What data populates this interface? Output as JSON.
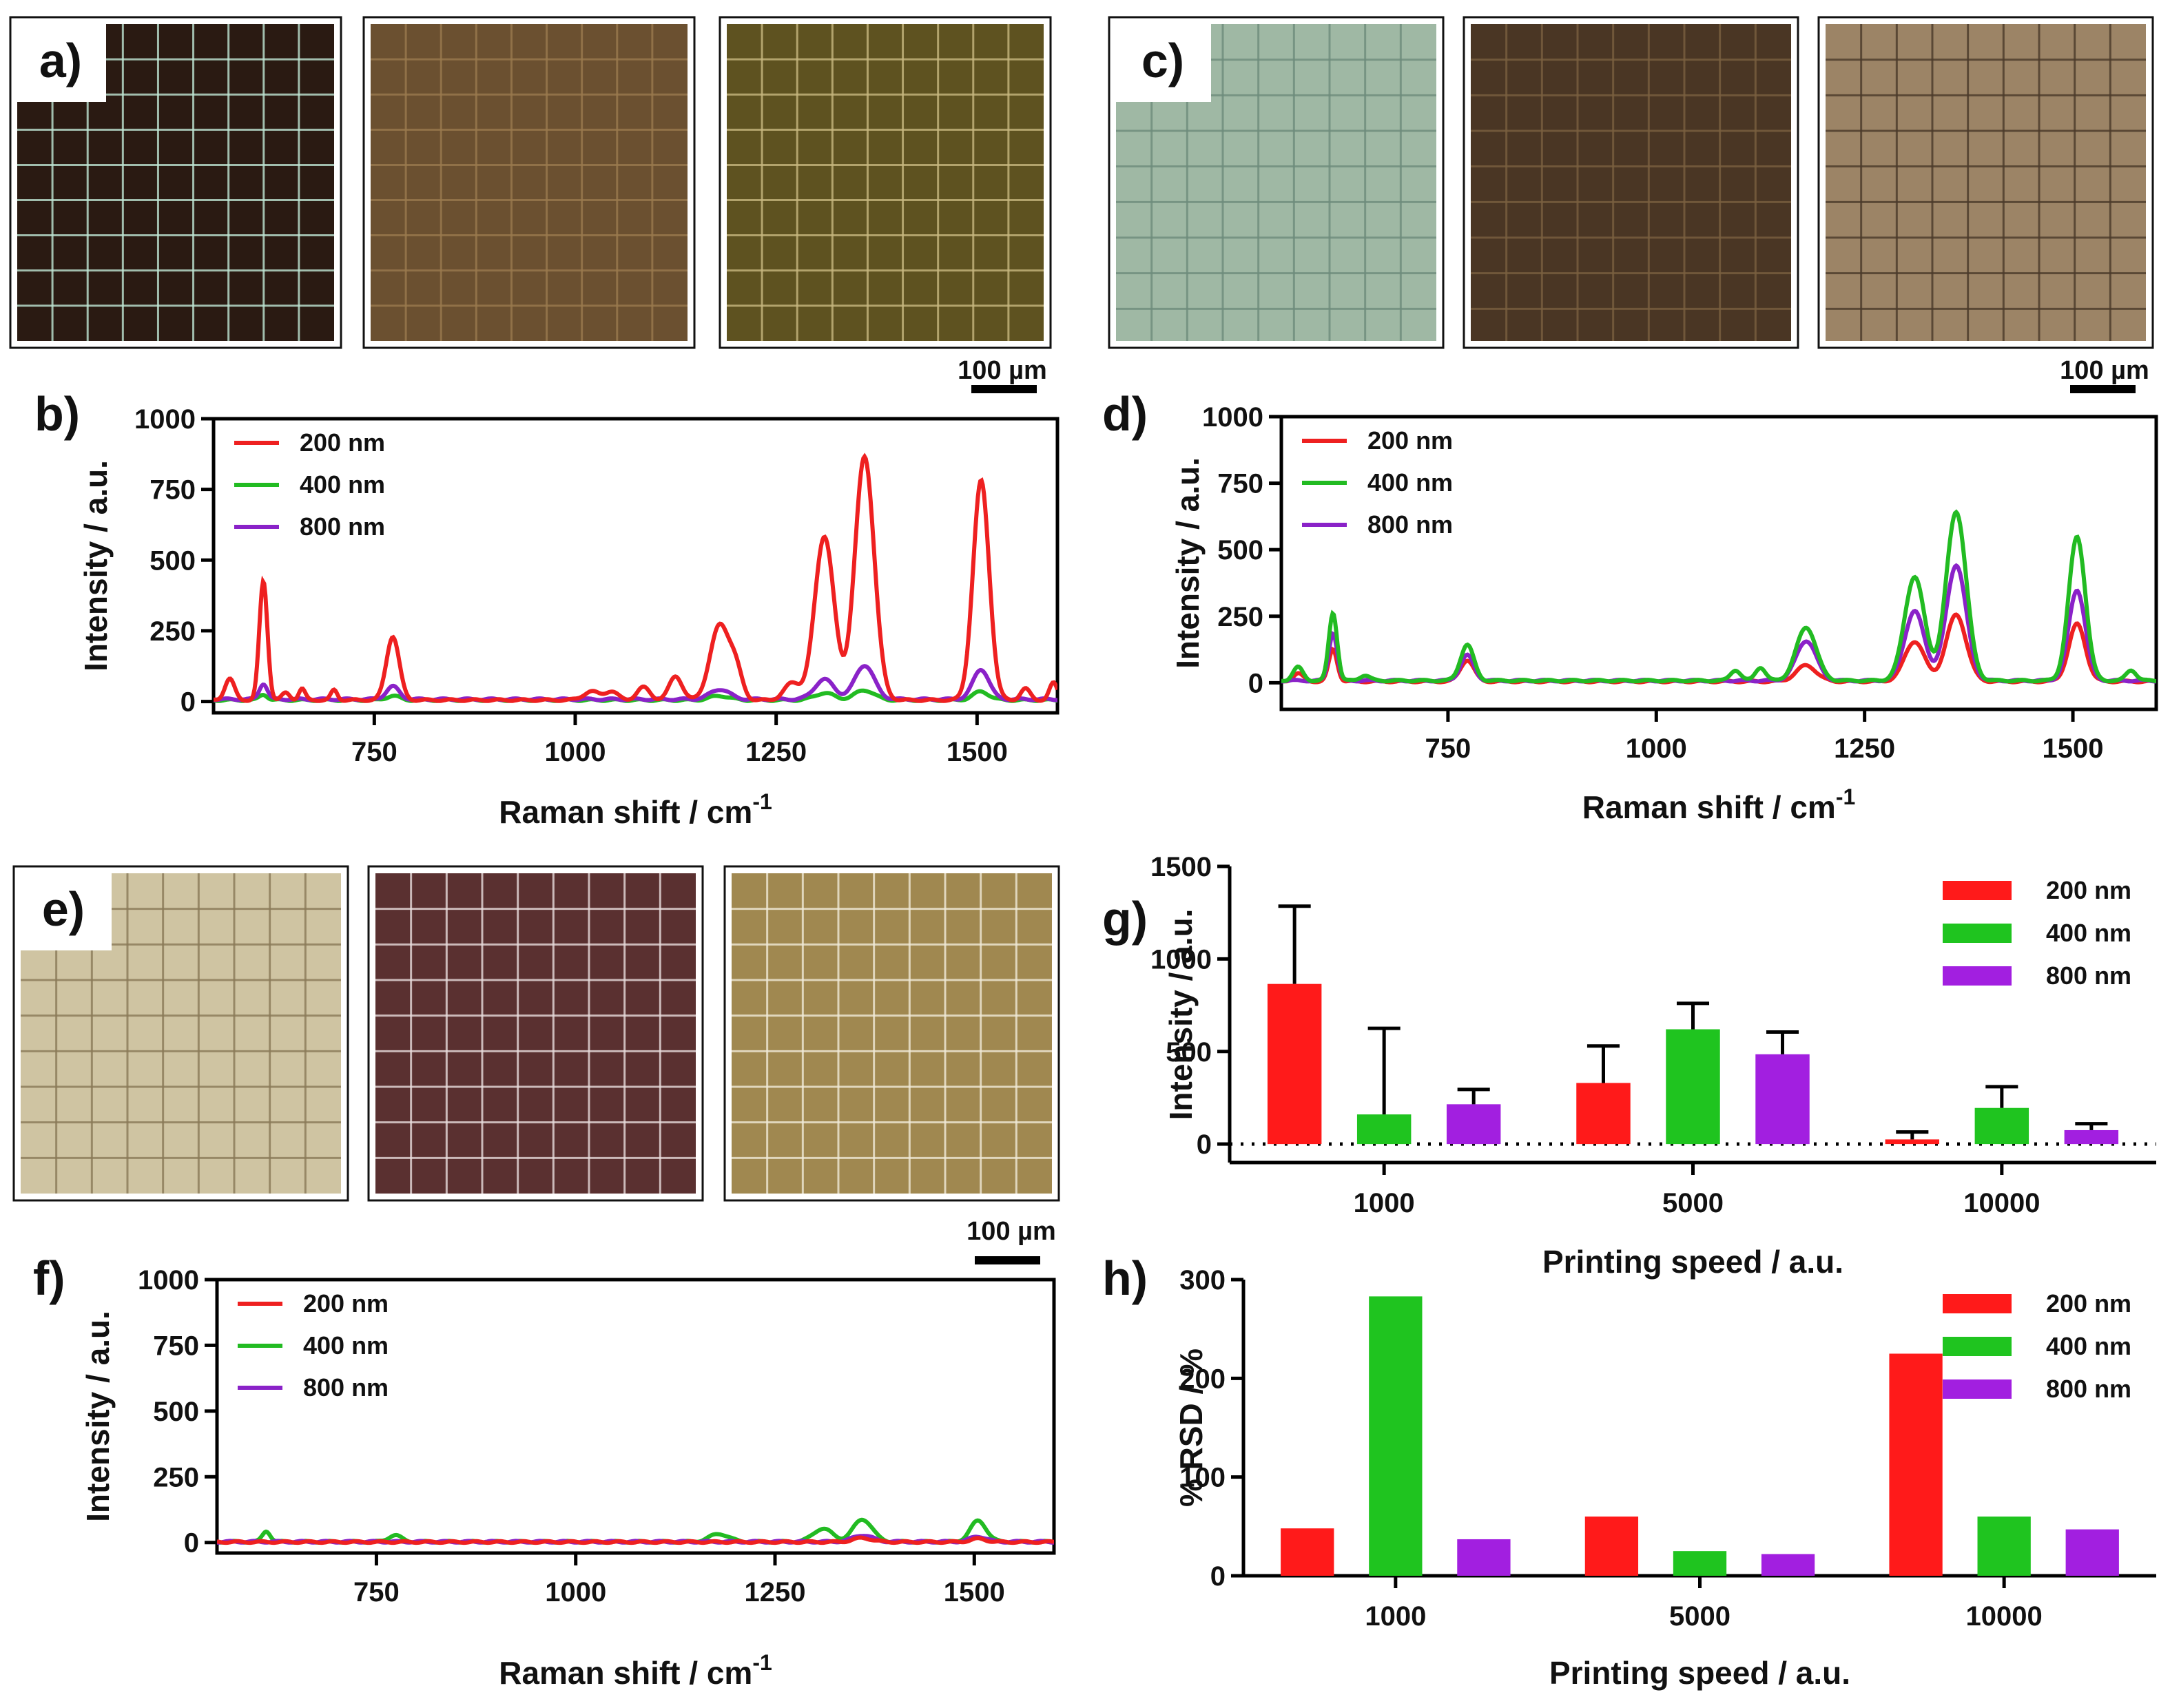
{
  "figure": {
    "micrograph_groups": [
      {
        "label": "a)",
        "tones": [
          {
            "bg": "#2a1a12",
            "grid": "#bfe6d4"
          },
          {
            "bg": "#6b5030",
            "grid": "#9a7a4e"
          },
          {
            "bg": "#5e5220",
            "grid": "#c8b880"
          }
        ],
        "scale_bar": "100 µm"
      },
      {
        "label": "c)",
        "tones": [
          {
            "bg": "#9fb8a4",
            "grid": "#6e8c7c"
          },
          {
            "bg": "#4a3624",
            "grid": "#7a6040"
          },
          {
            "bg": "#9c8466",
            "grid": "#4a3a2a"
          }
        ],
        "scale_bar": "100 µm"
      },
      {
        "label": "e)",
        "tones": [
          {
            "bg": "#cfc4a2",
            "grid": "#8a7a58"
          },
          {
            "bg": "#5a3030",
            "grid": "#e8dcdc"
          },
          {
            "bg": "#a08850",
            "grid": "#f0ead8"
          }
        ],
        "scale_bar": "100 µm"
      }
    ]
  },
  "chart_data": [
    {
      "panel": "b)",
      "type": "line",
      "xlabel": "Raman shift / cm",
      "xlabel_sup": "-1",
      "ylabel": "Intensity / a.u.",
      "xlim": [
        550,
        1600
      ],
      "ylim": [
        -40,
        1000
      ],
      "xticks": [
        750,
        1000,
        1250,
        1500
      ],
      "yticks": [
        0,
        250,
        500,
        750,
        1000
      ],
      "series": [
        {
          "name": "200 nm",
          "color": "#ee2020",
          "baseline": 5,
          "peaks": [
            [
              570,
              75,
              6
            ],
            [
              612,
              420,
              5
            ],
            [
              640,
              25,
              5
            ],
            [
              660,
              40,
              4
            ],
            [
              700,
              35,
              4
            ],
            [
              773,
              225,
              8
            ],
            [
              1020,
              30,
              10
            ],
            [
              1045,
              30,
              8
            ],
            [
              1085,
              45,
              8
            ],
            [
              1125,
              85,
              8
            ],
            [
              1180,
              265,
              12
            ],
            [
              1200,
              90,
              8
            ],
            [
              1270,
              60,
              10
            ],
            [
              1310,
              580,
              12
            ],
            [
              1360,
              860,
              12
            ],
            [
              1505,
              775,
              10
            ],
            [
              1560,
              40,
              6
            ],
            [
              1595,
              60,
              5
            ]
          ]
        },
        {
          "name": "400 nm",
          "color": "#22bb22",
          "baseline": 5,
          "peaks": [
            [
              612,
              20,
              5
            ],
            [
              773,
              15,
              8
            ],
            [
              1180,
              15,
              12
            ],
            [
              1310,
              25,
              12
            ],
            [
              1360,
              35,
              12
            ],
            [
              1505,
              30,
              10
            ]
          ]
        },
        {
          "name": "800 nm",
          "color": "#8a22c8",
          "baseline": 8,
          "peaks": [
            [
              612,
              55,
              5
            ],
            [
              773,
              45,
              8
            ],
            [
              1180,
              35,
              12
            ],
            [
              1310,
              70,
              12
            ],
            [
              1360,
              120,
              12
            ],
            [
              1505,
              105,
              10
            ]
          ]
        }
      ]
    },
    {
      "panel": "d)",
      "type": "line",
      "xlabel": "Raman shift / cm",
      "xlabel_sup": "-1",
      "ylabel": "Intensity / a.u.",
      "xlim": [
        550,
        1600
      ],
      "ylim": [
        -100,
        1000
      ],
      "xticks": [
        750,
        1000,
        1250,
        1500
      ],
      "yticks": [
        0,
        250,
        500,
        750,
        1000
      ],
      "series": [
        {
          "name": "200 nm",
          "color": "#ee2020",
          "baseline": 5,
          "peaks": [
            [
              570,
              30,
              6
            ],
            [
              612,
              120,
              5
            ],
            [
              773,
              80,
              8
            ],
            [
              1180,
              60,
              12
            ],
            [
              1310,
              150,
              12
            ],
            [
              1360,
              250,
              12
            ],
            [
              1505,
              215,
              10
            ]
          ]
        },
        {
          "name": "400 nm",
          "color": "#22bb22",
          "baseline": 8,
          "peaks": [
            [
              570,
              50,
              6
            ],
            [
              612,
              255,
              5
            ],
            [
              650,
              20,
              6
            ],
            [
              773,
              135,
              8
            ],
            [
              1095,
              40,
              6
            ],
            [
              1125,
              50,
              6
            ],
            [
              1180,
              200,
              12
            ],
            [
              1310,
              390,
              12
            ],
            [
              1360,
              635,
              12
            ],
            [
              1505,
              540,
              10
            ],
            [
              1570,
              40,
              6
            ]
          ]
        },
        {
          "name": "800 nm",
          "color": "#8a22c8",
          "baseline": 8,
          "peaks": [
            [
              612,
              180,
              5
            ],
            [
              773,
              95,
              8
            ],
            [
              1180,
              150,
              12
            ],
            [
              1310,
              260,
              12
            ],
            [
              1360,
              435,
              12
            ],
            [
              1505,
              340,
              10
            ]
          ]
        }
      ]
    },
    {
      "panel": "f)",
      "type": "line",
      "xlabel": "Raman shift / cm",
      "xlabel_sup": "-1",
      "ylabel": "Intensity / a.u.",
      "xlim": [
        550,
        1600
      ],
      "ylim": [
        -40,
        1000
      ],
      "xticks": [
        750,
        1000,
        1250,
        1500
      ],
      "yticks": [
        0,
        250,
        500,
        750,
        1000
      ],
      "series": [
        {
          "name": "200 nm",
          "color": "#ee2020",
          "baseline": 2,
          "peaks": [
            [
              1360,
              15,
              12
            ],
            [
              1505,
              12,
              10
            ]
          ]
        },
        {
          "name": "400 nm",
          "color": "#22bb22",
          "baseline": 3,
          "peaks": [
            [
              612,
              40,
              5
            ],
            [
              773,
              25,
              8
            ],
            [
              1180,
              30,
              12
            ],
            [
              1310,
              50,
              12
            ],
            [
              1360,
              85,
              12
            ],
            [
              1505,
              80,
              10
            ]
          ]
        },
        {
          "name": "800 nm",
          "color": "#8a22c8",
          "baseline": 3,
          "peaks": [
            [
              1360,
              25,
              12
            ],
            [
              1505,
              20,
              10
            ]
          ]
        }
      ]
    },
    {
      "panel": "g)",
      "type": "bar",
      "xlabel": "Printing speed / a.u.",
      "ylabel": "Intensity / a.u.",
      "categories": [
        "1000",
        "5000",
        "10000"
      ],
      "ylim": [
        -100,
        1500
      ],
      "yticks": [
        0,
        500,
        1000,
        1500
      ],
      "zero_line": "dotted",
      "series": [
        {
          "name": "200 nm",
          "color": "#ff1a1a",
          "values": [
            865,
            330,
            25
          ],
          "errors": [
            420,
            200,
            40
          ]
        },
        {
          "name": "400 nm",
          "color": "#1fc41f",
          "values": [
            160,
            620,
            195
          ],
          "errors": [
            465,
            140,
            115
          ]
        },
        {
          "name": "800 nm",
          "color": "#a21fe0",
          "values": [
            215,
            485,
            75
          ],
          "errors": [
            80,
            120,
            35
          ]
        }
      ]
    },
    {
      "panel": "h)",
      "type": "bar",
      "xlabel": "Printing speed / a.u.",
      "ylabel": "% RSD / %",
      "categories": [
        "1000",
        "5000",
        "10000"
      ],
      "ylim": [
        0,
        300
      ],
      "yticks": [
        0,
        100,
        200,
        300
      ],
      "series": [
        {
          "name": "200 nm",
          "color": "#ff1a1a",
          "values": [
            48,
            60,
            225
          ]
        },
        {
          "name": "400 nm",
          "color": "#1fc41f",
          "values": [
            283,
            25,
            60
          ]
        },
        {
          "name": "800 nm",
          "color": "#a21fe0",
          "values": [
            37,
            22,
            47
          ]
        }
      ]
    }
  ]
}
